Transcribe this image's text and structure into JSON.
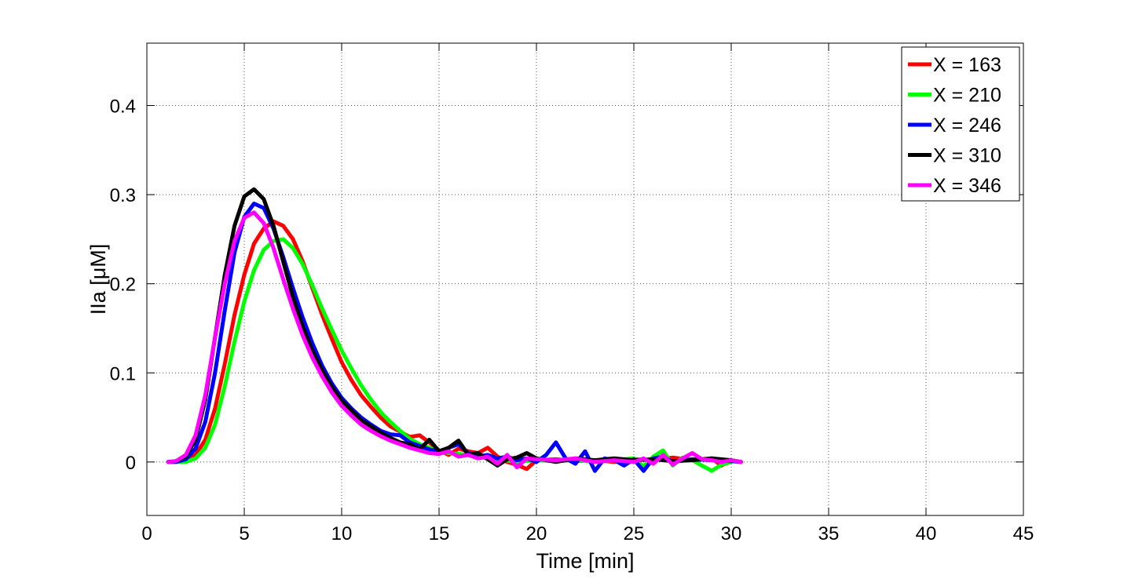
{
  "chart_data": {
    "type": "line",
    "title": "",
    "xlabel": "Time [min]",
    "ylabel": "IIa [μM]",
    "xlim": [
      0,
      45
    ],
    "ylim": [
      -0.06,
      0.47
    ],
    "xticks": [
      0,
      5,
      10,
      15,
      20,
      25,
      30,
      35,
      40,
      45
    ],
    "xtick_labels": [
      "0",
      "5",
      "10",
      "15",
      "20",
      "25",
      "30",
      "35",
      "40",
      "45"
    ],
    "yticks": [
      0,
      0.1,
      0.2,
      0.3,
      0.4
    ],
    "ytick_labels": [
      "0",
      "0.1",
      "0.2",
      "0.3",
      "0.4"
    ],
    "grid": true,
    "legend_position": "top-right",
    "series": [
      {
        "name": "X = 163",
        "color": "#ff0000",
        "points": [
          [
            1.1,
            0
          ],
          [
            1.5,
            0
          ],
          [
            2,
            0.002
          ],
          [
            2.5,
            0.008
          ],
          [
            3,
            0.025
          ],
          [
            3.5,
            0.06
          ],
          [
            4,
            0.11
          ],
          [
            4.5,
            0.165
          ],
          [
            5,
            0.21
          ],
          [
            5.5,
            0.245
          ],
          [
            6,
            0.262
          ],
          [
            6.5,
            0.27
          ],
          [
            7,
            0.265
          ],
          [
            7.5,
            0.25
          ],
          [
            8,
            0.225
          ],
          [
            8.5,
            0.195
          ],
          [
            9,
            0.165
          ],
          [
            9.5,
            0.138
          ],
          [
            10,
            0.112
          ],
          [
            10.5,
            0.092
          ],
          [
            11,
            0.075
          ],
          [
            11.5,
            0.062
          ],
          [
            12,
            0.05
          ],
          [
            12.5,
            0.04
          ],
          [
            13,
            0.034
          ],
          [
            13.5,
            0.028
          ],
          [
            14,
            0.03
          ],
          [
            14.5,
            0.022
          ],
          [
            15,
            0.013
          ],
          [
            15.5,
            0.008
          ],
          [
            16,
            0.015
          ],
          [
            16.5,
            0.012
          ],
          [
            17,
            0.01
          ],
          [
            17.5,
            0.016
          ],
          [
            18,
            0.006
          ],
          [
            18.5,
            0.0
          ],
          [
            19,
            -0.003
          ],
          [
            19.5,
            -0.008
          ],
          [
            20,
            0.002
          ],
          [
            21,
            0.003
          ],
          [
            22,
            0.001
          ],
          [
            23,
            0.002
          ],
          [
            24,
            0.0
          ],
          [
            25,
            0.003
          ],
          [
            26,
            0.002
          ],
          [
            27,
            0.005
          ],
          [
            28,
            0.002
          ],
          [
            29,
            0.004
          ],
          [
            29.5,
            -0.004
          ],
          [
            30,
            0.002
          ],
          [
            30.5,
            0.0
          ]
        ]
      },
      {
        "name": "X = 210",
        "color": "#00ff00",
        "points": [
          [
            1.1,
            0
          ],
          [
            1.5,
            0
          ],
          [
            2,
            0.0
          ],
          [
            2.5,
            0.004
          ],
          [
            3,
            0.016
          ],
          [
            3.5,
            0.042
          ],
          [
            4,
            0.085
          ],
          [
            4.5,
            0.135
          ],
          [
            5,
            0.18
          ],
          [
            5.5,
            0.215
          ],
          [
            6,
            0.238
          ],
          [
            6.5,
            0.248
          ],
          [
            7,
            0.25
          ],
          [
            7.5,
            0.24
          ],
          [
            8,
            0.222
          ],
          [
            8.5,
            0.198
          ],
          [
            9,
            0.172
          ],
          [
            9.5,
            0.148
          ],
          [
            10,
            0.125
          ],
          [
            10.5,
            0.105
          ],
          [
            11,
            0.086
          ],
          [
            11.5,
            0.07
          ],
          [
            12,
            0.056
          ],
          [
            12.5,
            0.045
          ],
          [
            13,
            0.035
          ],
          [
            13.5,
            0.026
          ],
          [
            14,
            0.02
          ],
          [
            14.5,
            0.016
          ],
          [
            15,
            0.012
          ],
          [
            15.5,
            0.01
          ],
          [
            16,
            0.009
          ],
          [
            16.5,
            0.008
          ],
          [
            17,
            0.006
          ],
          [
            17.5,
            0.004
          ],
          [
            18,
            0.003
          ],
          [
            19,
            0.0
          ],
          [
            20,
            0.002
          ],
          [
            21,
            0.001
          ],
          [
            22,
            0.002
          ],
          [
            23,
            0.0
          ],
          [
            24,
            0.002
          ],
          [
            25,
            0.004
          ],
          [
            25.5,
            -0.005
          ],
          [
            26,
            0.006
          ],
          [
            26.5,
            0.013
          ],
          [
            27,
            -0.004
          ],
          [
            27.5,
            0.005
          ],
          [
            28,
            0.002
          ],
          [
            28.5,
            -0.004
          ],
          [
            29,
            -0.01
          ],
          [
            29.5,
            -0.003
          ],
          [
            30,
            0.0
          ]
        ]
      },
      {
        "name": "X = 246",
        "color": "#0000ff",
        "points": [
          [
            1.1,
            0
          ],
          [
            1.5,
            0
          ],
          [
            2,
            0.003
          ],
          [
            2.5,
            0.015
          ],
          [
            3,
            0.045
          ],
          [
            3.5,
            0.1
          ],
          [
            4,
            0.17
          ],
          [
            4.5,
            0.235
          ],
          [
            5,
            0.275
          ],
          [
            5.5,
            0.29
          ],
          [
            6,
            0.285
          ],
          [
            6.5,
            0.262
          ],
          [
            7,
            0.23
          ],
          [
            7.5,
            0.195
          ],
          [
            8,
            0.162
          ],
          [
            8.5,
            0.133
          ],
          [
            9,
            0.108
          ],
          [
            9.5,
            0.088
          ],
          [
            10,
            0.072
          ],
          [
            10.5,
            0.06
          ],
          [
            11,
            0.05
          ],
          [
            11.5,
            0.042
          ],
          [
            12,
            0.035
          ],
          [
            12.5,
            0.031
          ],
          [
            13,
            0.03
          ],
          [
            13.5,
            0.022
          ],
          [
            14,
            0.018
          ],
          [
            14.5,
            0.014
          ],
          [
            15,
            0.012
          ],
          [
            15.5,
            0.016
          ],
          [
            16,
            0.02
          ],
          [
            16.5,
            0.01
          ],
          [
            17,
            0.006
          ],
          [
            17.5,
            0.008
          ],
          [
            18,
            0.004
          ],
          [
            18.5,
            0.006
          ],
          [
            19,
            0.002
          ],
          [
            19.5,
            0.004
          ],
          [
            20,
            0.0
          ],
          [
            20.5,
            0.008
          ],
          [
            21,
            0.022
          ],
          [
            21.5,
            0.004
          ],
          [
            22,
            -0.002
          ],
          [
            22.5,
            0.012
          ],
          [
            23,
            -0.01
          ],
          [
            23.5,
            0.004
          ],
          [
            24,
            0.002
          ],
          [
            24.5,
            -0.004
          ],
          [
            25,
            0.003
          ],
          [
            25.5,
            -0.01
          ],
          [
            26,
            0.004
          ],
          [
            26.5,
            0.006
          ],
          [
            27,
            0.0
          ],
          [
            28,
            0.003
          ],
          [
            29,
            0.002
          ],
          [
            30,
            0.001
          ],
          [
            30.5,
            0.0
          ]
        ]
      },
      {
        "name": "X = 310",
        "color": "#000000",
        "points": [
          [
            1.1,
            0
          ],
          [
            1.5,
            0.001
          ],
          [
            2,
            0.006
          ],
          [
            2.5,
            0.025
          ],
          [
            3,
            0.07
          ],
          [
            3.5,
            0.14
          ],
          [
            4,
            0.21
          ],
          [
            4.5,
            0.265
          ],
          [
            5,
            0.298
          ],
          [
            5.5,
            0.306
          ],
          [
            6,
            0.295
          ],
          [
            6.5,
            0.265
          ],
          [
            7,
            0.225
          ],
          [
            7.5,
            0.185
          ],
          [
            8,
            0.152
          ],
          [
            8.5,
            0.125
          ],
          [
            9,
            0.103
          ],
          [
            9.5,
            0.084
          ],
          [
            10,
            0.069
          ],
          [
            10.5,
            0.058
          ],
          [
            11,
            0.047
          ],
          [
            11.5,
            0.04
          ],
          [
            12,
            0.033
          ],
          [
            12.5,
            0.027
          ],
          [
            13,
            0.022
          ],
          [
            13.5,
            0.02
          ],
          [
            14,
            0.014
          ],
          [
            14.5,
            0.025
          ],
          [
            15,
            0.012
          ],
          [
            15.5,
            0.016
          ],
          [
            16,
            0.024
          ],
          [
            16.5,
            0.008
          ],
          [
            17,
            0.01
          ],
          [
            17.5,
            0.003
          ],
          [
            18,
            -0.004
          ],
          [
            18.5,
            0.003
          ],
          [
            19,
            0.005
          ],
          [
            19.5,
            0.01
          ],
          [
            20,
            0.004
          ],
          [
            21,
            0.0
          ],
          [
            22,
            0.004
          ],
          [
            23,
            0.002
          ],
          [
            24,
            0.004
          ],
          [
            25,
            0.002
          ],
          [
            26,
            0.003
          ],
          [
            27,
            0.001
          ],
          [
            28,
            0.002
          ],
          [
            29,
            0.004
          ],
          [
            30,
            0.002
          ],
          [
            30.5,
            0.0
          ]
        ]
      },
      {
        "name": "X = 346",
        "color": "#ff00ff",
        "points": [
          [
            1.1,
            0
          ],
          [
            1.5,
            0.001
          ],
          [
            2,
            0.008
          ],
          [
            2.5,
            0.03
          ],
          [
            3,
            0.075
          ],
          [
            3.5,
            0.14
          ],
          [
            4,
            0.2
          ],
          [
            4.5,
            0.248
          ],
          [
            5,
            0.274
          ],
          [
            5.5,
            0.28
          ],
          [
            6,
            0.268
          ],
          [
            6.5,
            0.24
          ],
          [
            7,
            0.205
          ],
          [
            7.5,
            0.172
          ],
          [
            8,
            0.142
          ],
          [
            8.5,
            0.117
          ],
          [
            9,
            0.096
          ],
          [
            9.5,
            0.078
          ],
          [
            10,
            0.063
          ],
          [
            10.5,
            0.052
          ],
          [
            11,
            0.042
          ],
          [
            11.5,
            0.035
          ],
          [
            12,
            0.029
          ],
          [
            12.5,
            0.024
          ],
          [
            13,
            0.02
          ],
          [
            13.5,
            0.016
          ],
          [
            14,
            0.013
          ],
          [
            14.5,
            0.01
          ],
          [
            15,
            0.009
          ],
          [
            15.5,
            0.012
          ],
          [
            16,
            0.006
          ],
          [
            16.5,
            0.008
          ],
          [
            17,
            0.004
          ],
          [
            17.5,
            0.006
          ],
          [
            18,
            -0.002
          ],
          [
            18.5,
            0.008
          ],
          [
            19,
            -0.006
          ],
          [
            19.5,
            0.004
          ],
          [
            20,
            0.003
          ],
          [
            21,
            0.002
          ],
          [
            22,
            0.004
          ],
          [
            23,
            0.0
          ],
          [
            24,
            0.002
          ],
          [
            25,
            0.0
          ],
          [
            25.5,
            0.004
          ],
          [
            26,
            -0.002
          ],
          [
            26.5,
            0.008
          ],
          [
            27,
            -0.003
          ],
          [
            27.5,
            0.004
          ],
          [
            28,
            0.01
          ],
          [
            28.5,
            0.003
          ],
          [
            29,
            0.002
          ],
          [
            29.5,
            0.0
          ],
          [
            30,
            0.002
          ],
          [
            30.5,
            0.0
          ]
        ]
      }
    ]
  }
}
